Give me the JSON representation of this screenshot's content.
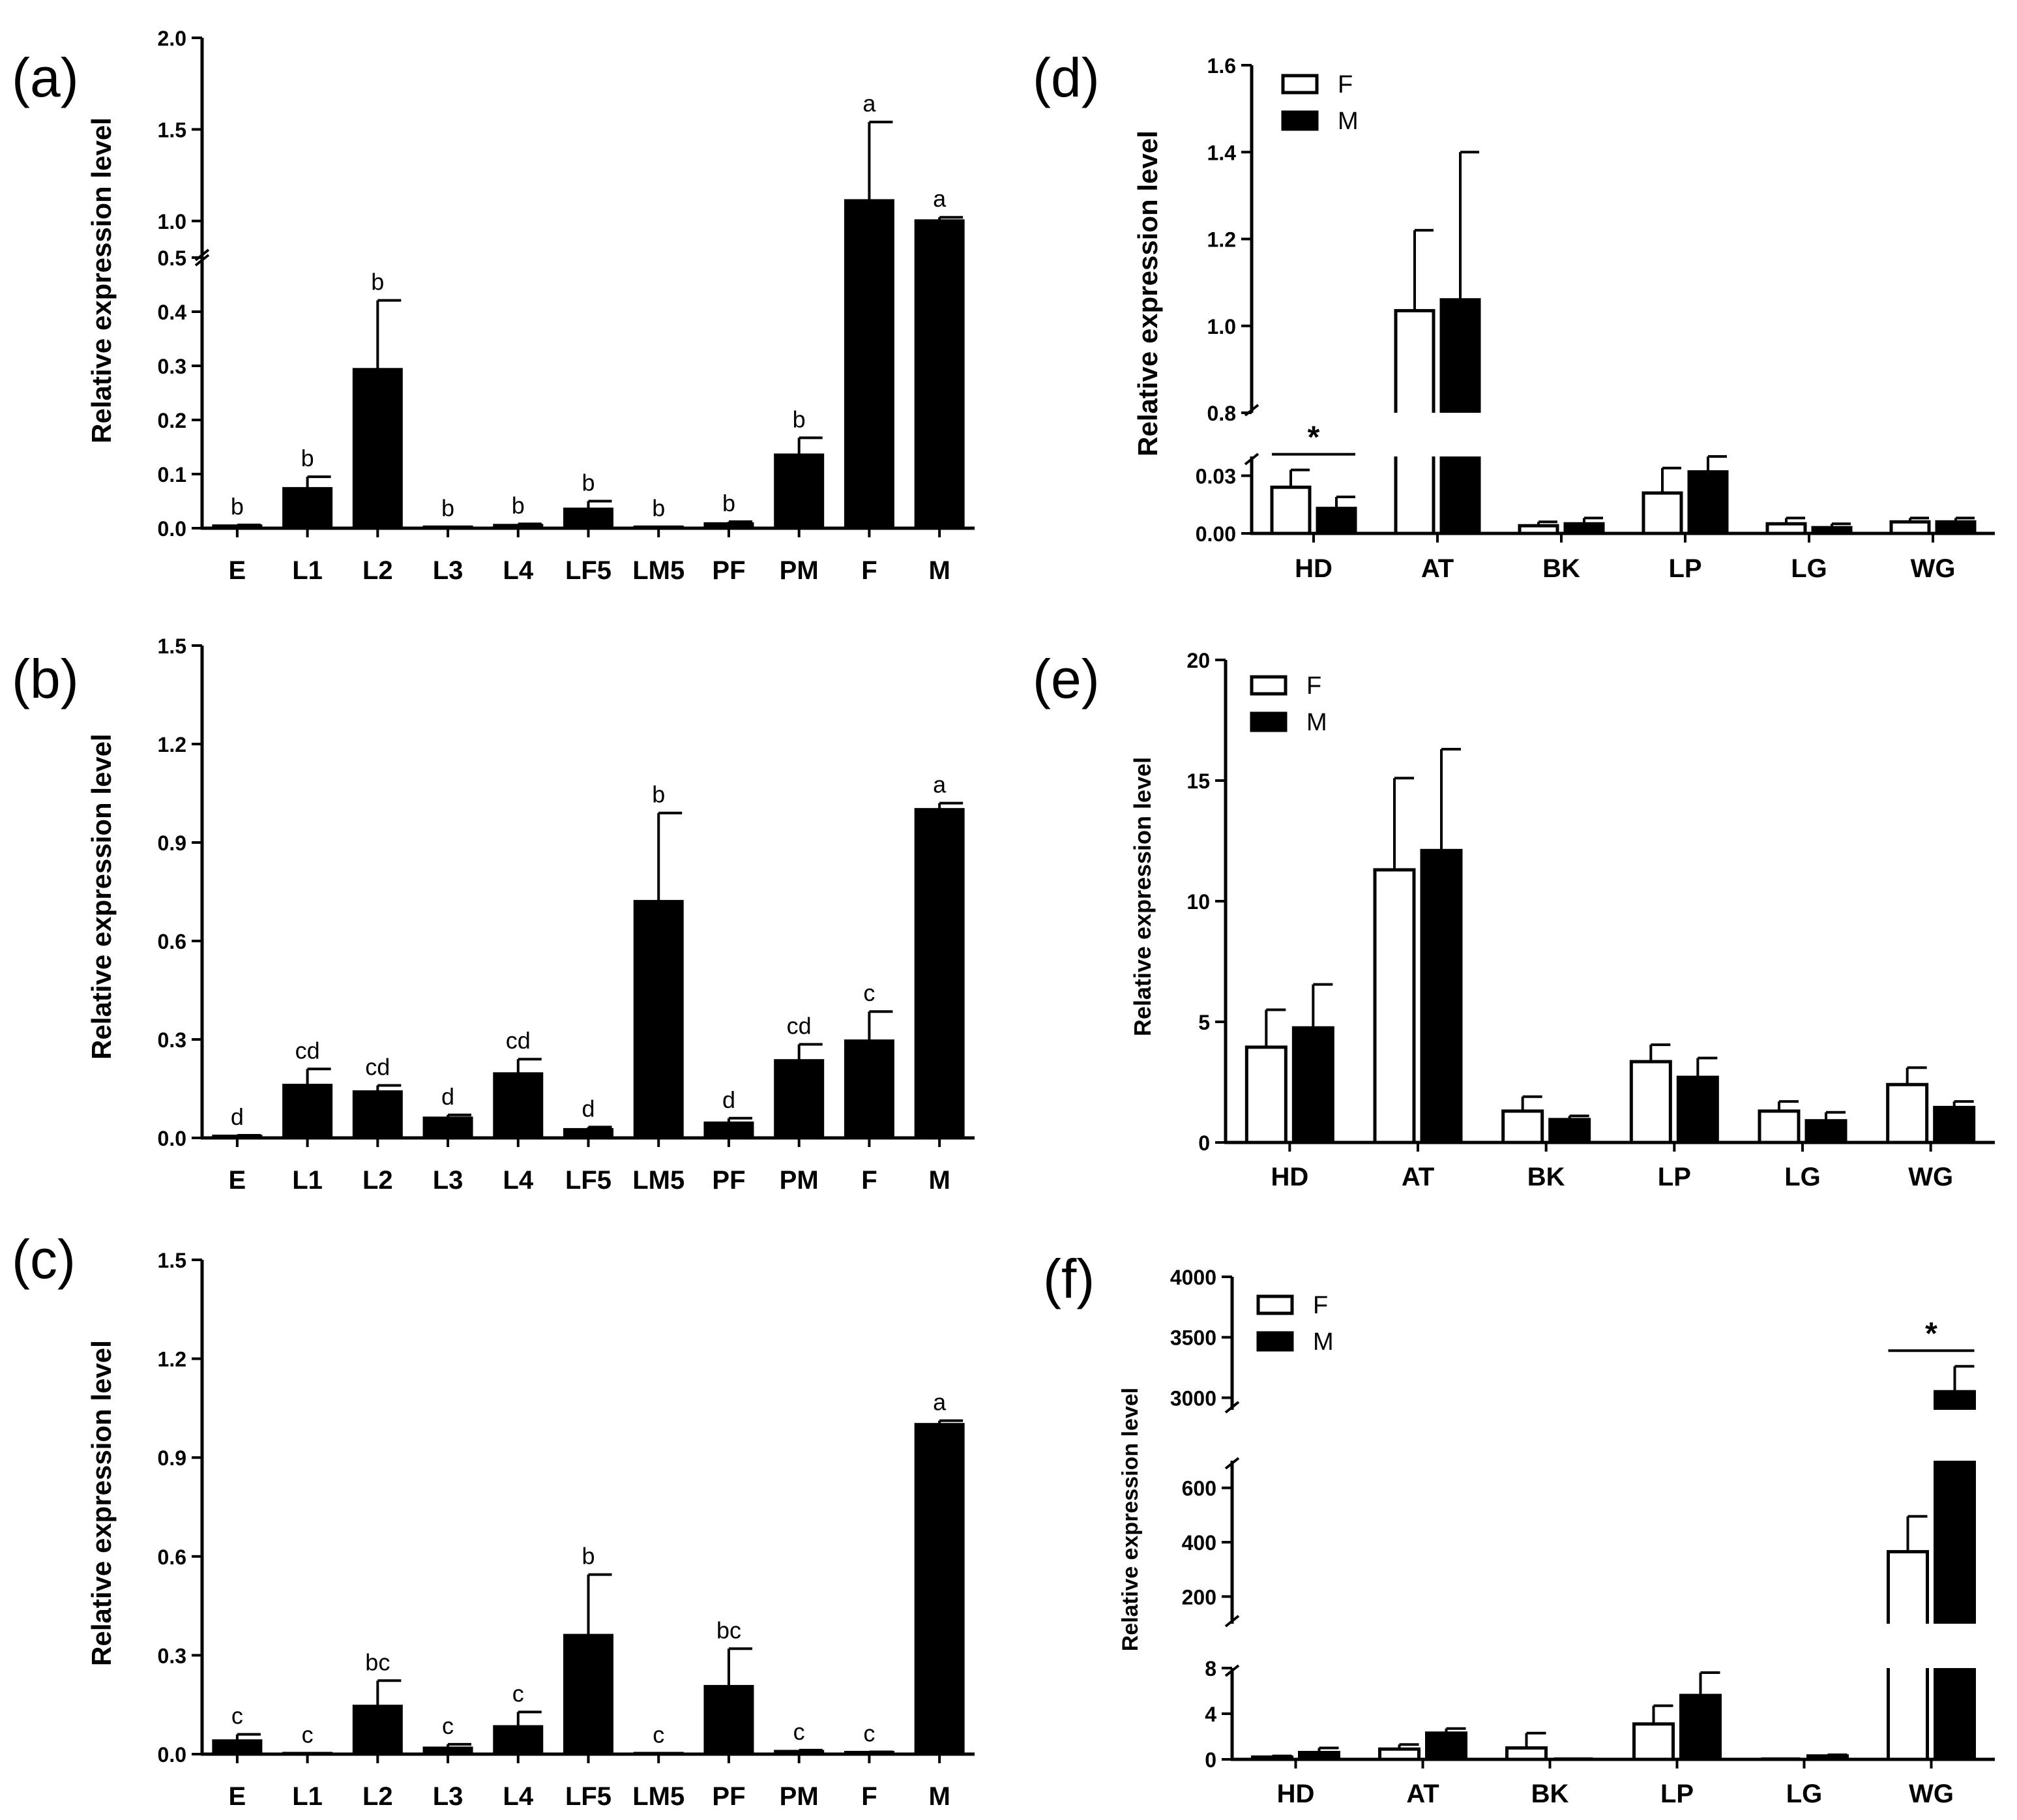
{
  "figure": {
    "y_axis_label": "Relative expression level"
  },
  "chart_data": [
    {
      "id": "a",
      "panel_label": "(a)",
      "type": "bar",
      "ylabel": "Relative expression level",
      "categories": [
        "E",
        "L1",
        "L2",
        "L3",
        "L4",
        "LF5",
        "LM5",
        "PF",
        "PM",
        "F",
        "M"
      ],
      "values": [
        0.004,
        0.073,
        0.293,
        0.002,
        0.005,
        0.035,
        0.002,
        0.008,
        0.135,
        1.11,
        1.0
      ],
      "errors": [
        0.002,
        0.022,
        0.128,
        0.001,
        0.003,
        0.015,
        0.001,
        0.004,
        0.032,
        0.43,
        0.02
      ],
      "letters": [
        "b",
        "b",
        "b",
        "b",
        "b",
        "b",
        "b",
        "b",
        "b",
        "a",
        "a"
      ],
      "ylim": [
        0,
        2.0
      ],
      "axis_break": [
        0.5,
        0.8
      ],
      "y_ticks": [
        0,
        0.1,
        0.2,
        0.3,
        0.4,
        0.5,
        1.0,
        1.5,
        2.0
      ],
      "y_tick_labels": [
        "0.0",
        "0.1",
        "0.2",
        "0.3",
        "0.4",
        "0.5",
        "1.0",
        "1.5",
        "2.0"
      ]
    },
    {
      "id": "b",
      "panel_label": "(b)",
      "type": "bar",
      "ylabel": "Relative expression level",
      "categories": [
        "E",
        "L1",
        "L2",
        "L3",
        "L4",
        "LF5",
        "LM5",
        "PF",
        "PM",
        "F",
        "M"
      ],
      "values": [
        0.005,
        0.16,
        0.14,
        0.06,
        0.195,
        0.025,
        0.72,
        0.045,
        0.235,
        0.295,
        1.0
      ],
      "errors": [
        0.003,
        0.05,
        0.02,
        0.01,
        0.045,
        0.008,
        0.27,
        0.015,
        0.05,
        0.09,
        0.02
      ],
      "letters": [
        "d",
        "cd",
        "cd",
        "d",
        "cd",
        "d",
        "b",
        "d",
        "cd",
        "c",
        "a"
      ],
      "ylim": [
        0,
        1.5
      ],
      "y_ticks": [
        0,
        0.3,
        0.6,
        0.9,
        1.2,
        1.5
      ],
      "y_tick_labels": [
        "0.0",
        "0.3",
        "0.6",
        "0.9",
        "1.2",
        "1.5"
      ]
    },
    {
      "id": "c",
      "panel_label": "(c)",
      "type": "bar",
      "ylabel": "Relative expression level",
      "categories": [
        "E",
        "L1",
        "L2",
        "L3",
        "L4",
        "LF5",
        "LM5",
        "PF",
        "PM",
        "F",
        "M"
      ],
      "values": [
        0.04,
        0.002,
        0.145,
        0.018,
        0.083,
        0.36,
        0.002,
        0.205,
        0.008,
        0.005,
        1.0
      ],
      "errors": [
        0.02,
        0.001,
        0.078,
        0.012,
        0.045,
        0.185,
        0.001,
        0.115,
        0.004,
        0.002,
        0.012
      ],
      "letters": [
        "c",
        "c",
        "bc",
        "c",
        "c",
        "b",
        "c",
        "bc",
        "c",
        "c",
        "a"
      ],
      "ylim": [
        0,
        1.5
      ],
      "y_ticks": [
        0,
        0.3,
        0.6,
        0.9,
        1.2,
        1.5
      ],
      "y_tick_labels": [
        "0.0",
        "0.3",
        "0.6",
        "0.9",
        "1.2",
        "1.5"
      ]
    },
    {
      "id": "d",
      "panel_label": "(d)",
      "type": "bar",
      "ylabel": "Relative expression level",
      "categories": [
        "HD",
        "AT",
        "BK",
        "LP",
        "LG",
        "WG"
      ],
      "series": [
        {
          "name": "F",
          "values": [
            0.024,
            1.035,
            0.004,
            0.021,
            0.005,
            0.006
          ],
          "errors": [
            0.009,
            0.185,
            0.002,
            0.013,
            0.003,
            0.002
          ]
        },
        {
          "name": "M",
          "values": [
            0.013,
            1.06,
            0.005,
            0.032,
            0.003,
            0.006
          ],
          "errors": [
            0.006,
            0.34,
            0.003,
            0.021,
            0.002,
            0.002
          ]
        }
      ],
      "ylim": [
        0,
        1.6
      ],
      "axis_break": [
        0.04,
        0.8
      ],
      "y_ticks": [
        0,
        0.03,
        0.8,
        1.0,
        1.2,
        1.4,
        1.6
      ],
      "y_tick_labels": [
        "0.00",
        "0.03",
        "0.8",
        "1.0",
        "1.2",
        "1.4",
        "1.6"
      ],
      "significance": [
        {
          "category": "HD",
          "label": "*"
        }
      ]
    },
    {
      "id": "e",
      "panel_label": "(e)",
      "type": "bar",
      "ylabel": "Relative expression level",
      "categories": [
        "HD",
        "AT",
        "BK",
        "LP",
        "LG",
        "WG"
      ],
      "series": [
        {
          "name": "F",
          "values": [
            3.95,
            11.3,
            1.3,
            3.35,
            1.3,
            2.4
          ],
          "errors": [
            1.55,
            3.8,
            0.6,
            0.7,
            0.4,
            0.7
          ]
        },
        {
          "name": "M",
          "values": [
            4.75,
            12.1,
            0.95,
            2.7,
            0.9,
            1.45
          ],
          "errors": [
            1.8,
            4.2,
            0.15,
            0.8,
            0.35,
            0.25
          ]
        }
      ],
      "ylim": [
        0,
        20
      ],
      "y_ticks": [
        0,
        5,
        10,
        15,
        20
      ],
      "y_tick_labels": [
        "0",
        "5",
        "10",
        "15",
        "20"
      ]
    },
    {
      "id": "f",
      "panel_label": "(f)",
      "type": "bar",
      "ylabel": "Relative expression level",
      "categories": [
        "HD",
        "AT",
        "BK",
        "LP",
        "LG",
        "WG"
      ],
      "series": [
        {
          "name": "F",
          "values": [
            0.2,
            0.9,
            1.0,
            3.1,
            0.0,
            365
          ],
          "errors": [
            0.1,
            0.4,
            1.3,
            1.6,
            0.0,
            130
          ]
        },
        {
          "name": "M",
          "values": [
            0.6,
            2.3,
            0.0,
            5.6,
            0.3,
            3050
          ],
          "errors": [
            0.4,
            0.4,
            0.0,
            2.0,
            0.1,
            210
          ]
        }
      ],
      "ylim": [
        0,
        4000
      ],
      "axis_breaks": [
        [
          8,
          100
        ],
        [
          700,
          2900
        ]
      ],
      "y_ticks": [
        0,
        4,
        8,
        200,
        400,
        600,
        3000,
        3500,
        4000
      ],
      "y_tick_labels": [
        "0",
        "4",
        "8",
        "200",
        "400",
        "600",
        "3000",
        "3500",
        "4000"
      ],
      "significance": [
        {
          "category": "WG",
          "label": "*"
        }
      ]
    }
  ]
}
